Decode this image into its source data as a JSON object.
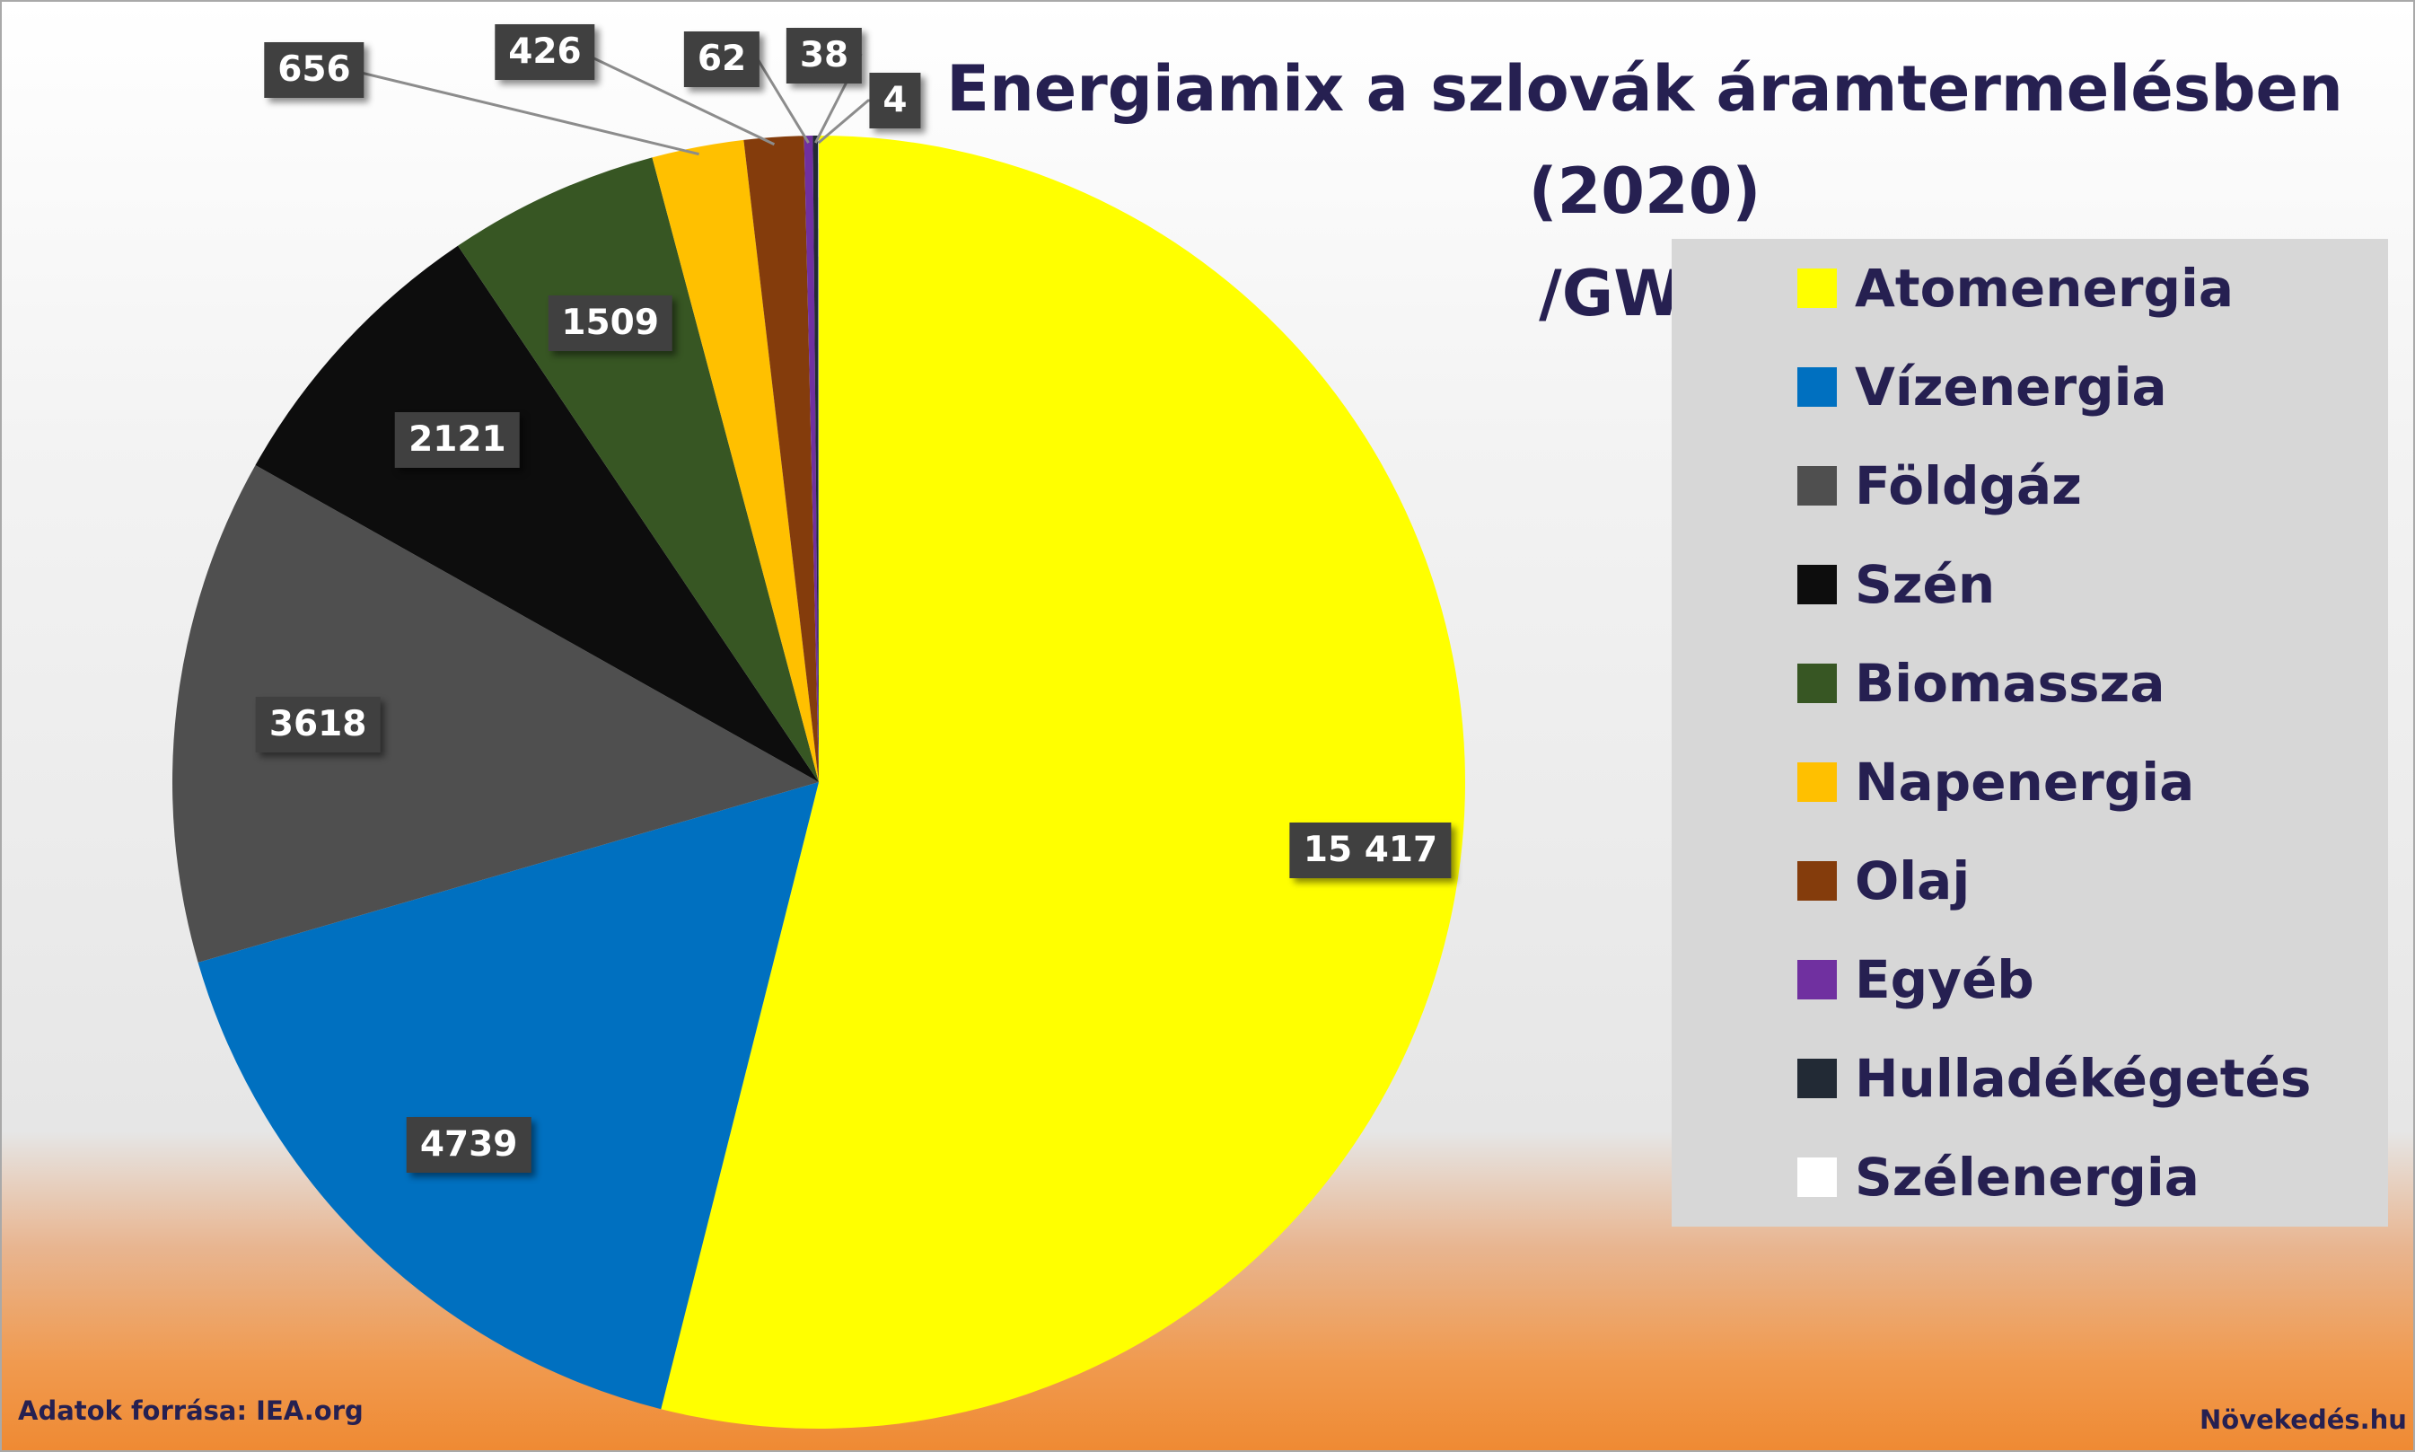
{
  "chart_data": {
    "type": "pie",
    "title_line1": "Energiamix a szlovák áramtermelésben (2020)",
    "title_line2": "/GWh/",
    "slices": [
      {
        "name": "Atomenergia",
        "value": 15417,
        "label": "15 417",
        "color": "#FFFF00"
      },
      {
        "name": "Vízenergia",
        "value": 4739,
        "label": "4739",
        "color": "#0070C0"
      },
      {
        "name": "Földgáz",
        "value": 3618,
        "label": "3618",
        "color": "#4F4F4F"
      },
      {
        "name": "Szén",
        "value": 2121,
        "label": "2121",
        "color": "#0D0D0D"
      },
      {
        "name": "Biomassza",
        "value": 1509,
        "label": "1509",
        "color": "#375623"
      },
      {
        "name": "Napenergia",
        "value": 656,
        "label": "656",
        "color": "#FFC000"
      },
      {
        "name": "Olaj",
        "value": 426,
        "label": "426",
        "color": "#843C0C"
      },
      {
        "name": "Egyéb",
        "value": 62,
        "label": "62",
        "color": "#7030A0"
      },
      {
        "name": "Hulladékégetés",
        "value": 38,
        "label": "38",
        "color": "#222A35"
      },
      {
        "name": "Szélenergia",
        "value": 4,
        "label": "4",
        "color": "#FFFFFF"
      }
    ],
    "legend_position": "right"
  },
  "footer": {
    "source": "Adatok forrása: IEA.org",
    "brand": "Növekedés.hu"
  }
}
